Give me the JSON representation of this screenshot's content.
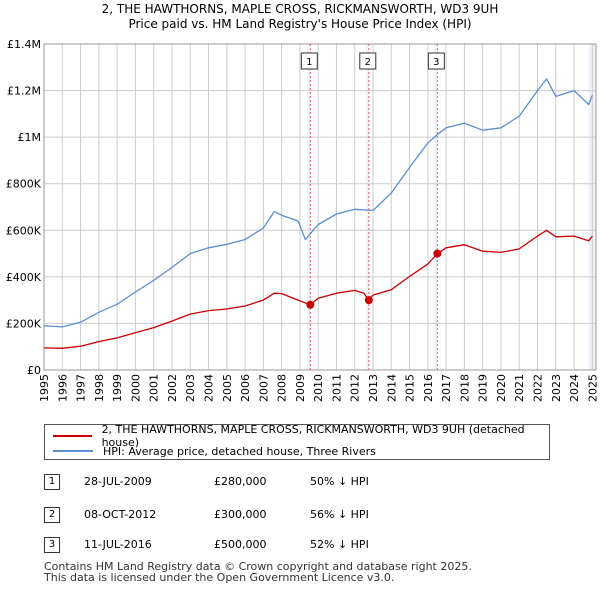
{
  "title_line1": "2, THE HAWTHORNS, MAPLE CROSS, RICKMANSWORTH, WD3 9UH",
  "title_line2": "Price paid vs. HM Land Registry's House Price Index (HPI)",
  "colors": {
    "property": "#cc0000",
    "hpi": "#5b8fd0",
    "shade": "#eef2fb",
    "grid": "#cccccc",
    "vline": "#e06060"
  },
  "legend": [
    {
      "label": "2, THE HAWTHORNS, MAPLE CROSS, RICKMANSWORTH, WD3 9UH (detached house)"
    },
    {
      "label": "HPI: Average price, detached house, Three Rivers"
    }
  ],
  "transactions": [
    {
      "num": "1",
      "date": "28-JUL-2009",
      "price": "£280,000",
      "pct": "50% ↓ HPI"
    },
    {
      "num": "2",
      "date": "08-OCT-2012",
      "price": "£300,000",
      "pct": "56% ↓ HPI"
    },
    {
      "num": "3",
      "date": "11-JUL-2016",
      "price": "£500,000",
      "pct": "52% ↓ HPI"
    }
  ],
  "footer_line1": "Contains HM Land Registry data © Crown copyright and database right 2025.",
  "footer_line2": "This data is licensed under the Open Government Licence v3.0.",
  "chart_data": {
    "type": "line",
    "title": "Price paid vs. HM Land Registry's House Price Index (HPI)",
    "xlabel": "",
    "ylabel": "",
    "xlim": [
      1995,
      2025.2
    ],
    "ylim": [
      0,
      1400000
    ],
    "x_ticks": [
      1995,
      1996,
      1997,
      1998,
      1999,
      2000,
      2001,
      2002,
      2003,
      2004,
      2005,
      2006,
      2007,
      2008,
      2009,
      2010,
      2011,
      2012,
      2013,
      2014,
      2015,
      2016,
      2017,
      2018,
      2019,
      2020,
      2021,
      2022,
      2023,
      2024,
      2025
    ],
    "x_tick_labels": [
      "1995",
      "1996",
      "1997",
      "1998",
      "1999",
      "2000",
      "2001",
      "2002",
      "2003",
      "2004",
      "2005",
      "2006",
      "2007",
      "2008",
      "2009",
      "2010",
      "2011",
      "2012",
      "2013",
      "2014",
      "2015",
      "2016",
      "2017",
      "2018",
      "2019",
      "2020",
      "2021",
      "2022",
      "2023",
      "2024",
      "2025"
    ],
    "y_ticks": [
      0,
      200000,
      400000,
      600000,
      800000,
      1000000,
      1200000,
      1400000
    ],
    "y_tick_labels": [
      "£0",
      "£200K",
      "£400K",
      "£600K",
      "£800K",
      "£1M",
      "£1.2M",
      "£1.4M"
    ],
    "grid": true,
    "series": [
      {
        "name": "2, THE HAWTHORNS, MAPLE CROSS, RICKMANSWORTH, WD3 9UH (detached house)",
        "x": [
          1995,
          1996,
          1997,
          1998,
          1999,
          2000,
          2001,
          2002,
          2003,
          2004,
          2005,
          2006,
          2007,
          2007.6,
          2008,
          2008.9,
          2009.57,
          2010,
          2011,
          2012,
          2012.5,
          2012.77,
          2013,
          2014,
          2015,
          2016,
          2016.52,
          2017,
          2018,
          2019,
          2020,
          2021,
          2022,
          2022.5,
          2023,
          2024,
          2024.8,
          2025
        ],
        "y": [
          95000,
          93000,
          102000,
          122000,
          138000,
          160000,
          182000,
          210000,
          240000,
          255000,
          262000,
          275000,
          300000,
          330000,
          328000,
          300000,
          280000,
          308000,
          330000,
          342000,
          330000,
          300000,
          322000,
          345000,
          402000,
          455000,
          500000,
          525000,
          538000,
          510000,
          505000,
          520000,
          575000,
          600000,
          572000,
          575000,
          555000,
          575000
        ]
      },
      {
        "name": "HPI: Average price, detached house, Three Rivers",
        "x": [
          1995,
          1996,
          1997,
          1998,
          1999,
          2000,
          2001,
          2002,
          2003,
          2004,
          2005,
          2006,
          2007,
          2007.6,
          2008,
          2008.9,
          2009.3,
          2010,
          2011,
          2012,
          2013,
          2014,
          2015,
          2016,
          2016.5,
          2017,
          2018,
          2019,
          2020,
          2021,
          2022,
          2022.5,
          2023,
          2024,
          2024.8,
          2025
        ],
        "y": [
          190000,
          185000,
          205000,
          248000,
          282000,
          335000,
          385000,
          440000,
          500000,
          525000,
          540000,
          560000,
          610000,
          680000,
          665000,
          640000,
          560000,
          625000,
          670000,
          690000,
          685000,
          760000,
          870000,
          975000,
          1010000,
          1040000,
          1060000,
          1030000,
          1040000,
          1090000,
          1200000,
          1250000,
          1175000,
          1200000,
          1140000,
          1180000
        ]
      }
    ],
    "markers": [
      {
        "label": "1",
        "x": 2009.57,
        "y": 280000
      },
      {
        "label": "2",
        "x": 2012.77,
        "y": 300000
      },
      {
        "label": "3",
        "x": 2016.52,
        "y": 500000
      }
    ]
  }
}
